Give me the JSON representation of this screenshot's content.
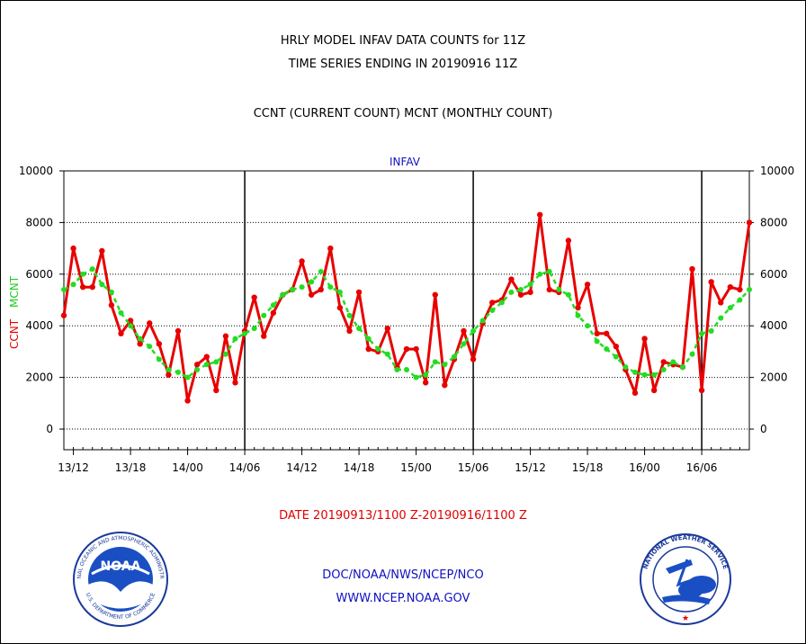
{
  "header": {
    "line1": "HRLY MODEL INFAV DATA COUNTS for 11Z",
    "line2": "TIME SERIES ENDING IN 20190916 11Z",
    "line3": "CCNT (CURRENT COUNT) MCNT (MONTHLY COUNT)"
  },
  "footer": {
    "date_range": "DATE 20190913/1100 Z-20190916/1100 Z",
    "org": "DOC/NOAA/NWS/NCEP/NCO",
    "url": "WWW.NCEP.NOAA.GOV"
  },
  "logos": {
    "noaa_text": "NOAA",
    "noaa_ring_text": "NATIONAL OCEANIC AND ATMOSPHERIC ADMINISTRATION",
    "noaa_ring_bottom": "U.S. DEPARTMENT OF COMMERCE",
    "nws_ring_text": "NATIONAL WEATHER SERVICE"
  },
  "chart_data": {
    "type": "line",
    "title": "INFAV",
    "ylabel_left_1": "CCNT",
    "ylabel_left_2": "MCNT",
    "ylim": [
      -800,
      10000
    ],
    "yticks": [
      0,
      2000,
      4000,
      6000,
      8000,
      10000
    ],
    "ytick_labels": [
      "0",
      "2000",
      "4000",
      "6000",
      "8000",
      "10000"
    ],
    "xlim": [
      11,
      83
    ],
    "xticks": [
      12,
      18,
      24,
      30,
      36,
      42,
      48,
      54,
      60,
      66,
      72,
      78
    ],
    "xtick_labels": [
      "13/12",
      "13/18",
      "14/00",
      "14/06",
      "14/12",
      "14/18",
      "15/00",
      "15/06",
      "15/12",
      "15/18",
      "16/00",
      "16/06"
    ],
    "day_boundaries": [
      30,
      54,
      78
    ],
    "grid": true,
    "series": [
      {
        "name": "CCNT",
        "color": "#e80000",
        "x": [
          11,
          12,
          13,
          14,
          15,
          16,
          17,
          18,
          19,
          20,
          21,
          22,
          23,
          24,
          25,
          26,
          27,
          28,
          29,
          30,
          31,
          32,
          33,
          34,
          35,
          36,
          37,
          38,
          39,
          40,
          41,
          42,
          43,
          44,
          45,
          46,
          47,
          48,
          49,
          50,
          51,
          52,
          53,
          54,
          55,
          56,
          57,
          58,
          59,
          60,
          61,
          62,
          63,
          64,
          65,
          66,
          67,
          68,
          69,
          70,
          71,
          72,
          73,
          74,
          75,
          76,
          77,
          78,
          79,
          80,
          81,
          82,
          83
        ],
        "values": [
          4400,
          7000,
          5500,
          5500,
          6900,
          4800,
          3700,
          4200,
          3300,
          4100,
          3300,
          2100,
          3800,
          1100,
          2500,
          2800,
          1500,
          3600,
          1800,
          3800,
          5100,
          3600,
          4500,
          5200,
          5400,
          6500,
          5200,
          5400,
          7000,
          4700,
          3800,
          5300,
          3100,
          3000,
          3900,
          2400,
          3100,
          3100,
          1800,
          5200,
          1700,
          2700,
          3800,
          2700,
          4100,
          4900,
          5000,
          5800,
          5200,
          5300,
          8300,
          5400,
          5300,
          7300,
          4700,
          5600,
          3700,
          3700,
          3200,
          2300,
          1400,
          3500,
          1500,
          2600,
          2500,
          2400,
          6200,
          1500,
          5700,
          4900,
          5500,
          5400,
          8000
        ]
      },
      {
        "name": "MCNT",
        "color": "#22dd22",
        "x": [
          11,
          12,
          13,
          14,
          15,
          16,
          17,
          18,
          19,
          20,
          21,
          22,
          23,
          24,
          25,
          26,
          27,
          28,
          29,
          30,
          31,
          32,
          33,
          34,
          35,
          36,
          37,
          38,
          39,
          40,
          41,
          42,
          43,
          44,
          45,
          46,
          47,
          48,
          49,
          50,
          51,
          52,
          53,
          54,
          55,
          56,
          57,
          58,
          59,
          60,
          61,
          62,
          63,
          64,
          65,
          66,
          67,
          68,
          69,
          70,
          71,
          72,
          73,
          74,
          75,
          76,
          77,
          78,
          79,
          80,
          81,
          82,
          83
        ],
        "values": [
          5400,
          5600,
          6000,
          6200,
          5600,
          5300,
          4500,
          4000,
          3500,
          3200,
          2700,
          2300,
          2200,
          2000,
          2300,
          2500,
          2600,
          2900,
          3500,
          3700,
          3900,
          4400,
          4800,
          5200,
          5400,
          5500,
          5700,
          6100,
          5500,
          5300,
          4400,
          3900,
          3500,
          3100,
          2900,
          2300,
          2300,
          2000,
          2100,
          2600,
          2500,
          2800,
          3300,
          3800,
          4200,
          4600,
          4900,
          5300,
          5400,
          5600,
          6000,
          6100,
          5400,
          5200,
          4400,
          4000,
          3400,
          3100,
          2800,
          2400,
          2200,
          2100,
          2100,
          2300,
          2600,
          2400,
          2900,
          3700,
          3800,
          4300,
          4700,
          5000,
          5400
        ]
      }
    ]
  }
}
